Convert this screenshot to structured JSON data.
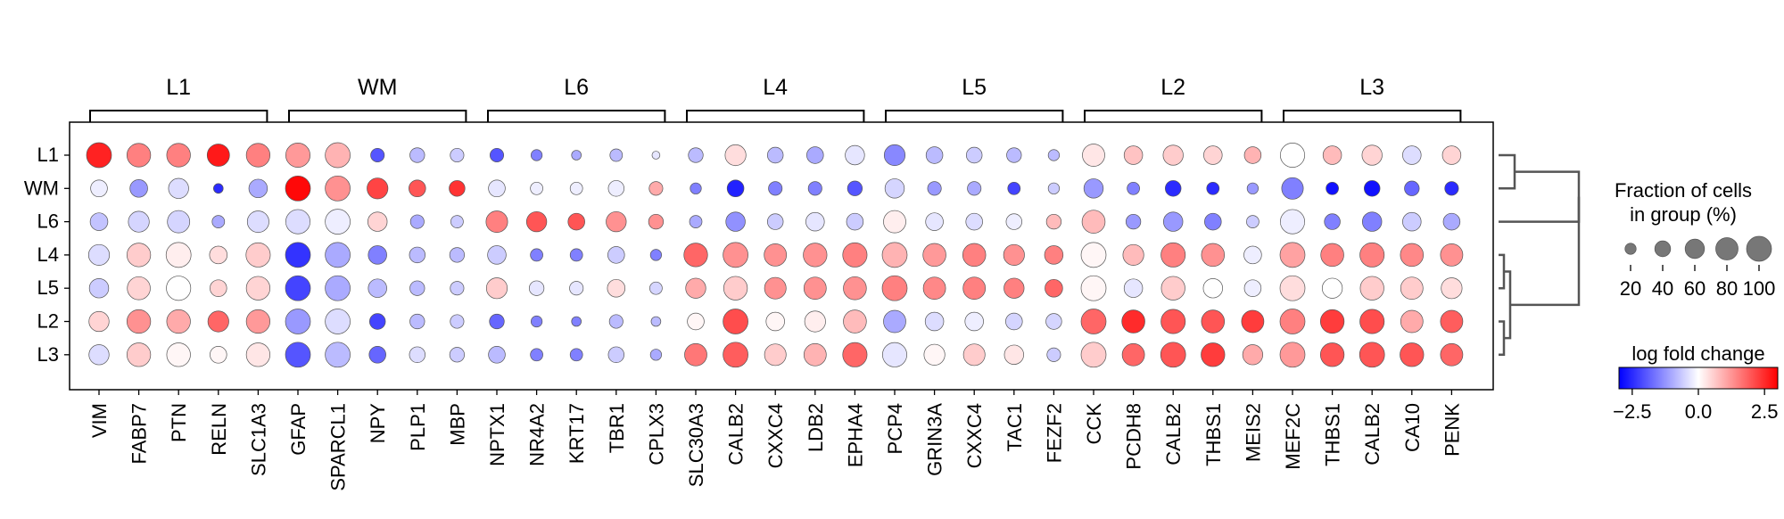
{
  "chart_data": {
    "type": "dotplot",
    "rows": [
      "L1",
      "WM",
      "L6",
      "L4",
      "L5",
      "L2",
      "L3"
    ],
    "group_labels": [
      "L1",
      "WM",
      "L6",
      "L4",
      "L5",
      "L2",
      "L3"
    ],
    "genes": [
      "VIM",
      "FABP7",
      "PTN",
      "RELN",
      "SLC1A3",
      "GFAP",
      "SPARCL1",
      "NPY",
      "PLP1",
      "MBP",
      "NPTX1",
      "NR4A2",
      "KRT17",
      "TBR1",
      "CPLX3",
      "SLC30A3",
      "CALB2",
      "CXXC4",
      "LDB2",
      "EPHA4",
      "PCP4",
      "GRIN3A",
      "CXXC4",
      "TAC1",
      "FEZF2",
      "CCK",
      "PCDH8",
      "CALB2",
      "THBS1",
      "MEIS2",
      "MEF2C",
      "THBS1",
      "CALB2",
      "CA10",
      "PENK"
    ],
    "fraction_pct": [
      [
        100,
        90,
        90,
        80,
        90,
        95,
        100,
        30,
        35,
        30,
        30,
        20,
        15,
        25,
        10,
        35,
        70,
        40,
        45,
        60,
        70,
        45,
        40,
        35,
        20,
        80,
        55,
        65,
        55,
        45,
        95,
        55,
        65,
        55,
        55
      ],
      [
        45,
        50,
        65,
        15,
        55,
        100,
        100,
        70,
        45,
        40,
        45,
        25,
        25,
        40,
        30,
        20,
        45,
        30,
        30,
        35,
        60,
        30,
        30,
        25,
        20,
        60,
        25,
        40,
        25,
        20,
        75,
        25,
        40,
        35,
        30
      ],
      [
        50,
        70,
        80,
        25,
        75,
        95,
        100,
        60,
        30,
        25,
        75,
        65,
        45,
        65,
        35,
        25,
        60,
        40,
        55,
        45,
        80,
        50,
        45,
        40,
        35,
        85,
        35,
        60,
        45,
        25,
        95,
        40,
        60,
        55,
        45
      ],
      [
        70,
        90,
        100,
        50,
        95,
        100,
        100,
        55,
        40,
        35,
        55,
        25,
        25,
        45,
        20,
        90,
        100,
        80,
        90,
        95,
        100,
        85,
        85,
        70,
        55,
        100,
        70,
        95,
        85,
        50,
        100,
        85,
        95,
        85,
        80
      ],
      [
        60,
        85,
        95,
        45,
        90,
        100,
        100,
        55,
        35,
        30,
        70,
        35,
        30,
        50,
        25,
        65,
        90,
        75,
        80,
        85,
        100,
        80,
        80,
        65,
        50,
        100,
        55,
        90,
        60,
        45,
        100,
        65,
        90,
        80,
        70
      ],
      [
        65,
        90,
        90,
        70,
        90,
        100,
        100,
        40,
        35,
        30,
        35,
        20,
        15,
        30,
        15,
        45,
        100,
        55,
        70,
        85,
        80,
        55,
        55,
        45,
        40,
        100,
        85,
        95,
        85,
        80,
        100,
        90,
        95,
        80,
        80
      ],
      [
        65,
        90,
        90,
        45,
        90,
        100,
        100,
        45,
        40,
        35,
        45,
        25,
        25,
        40,
        20,
        80,
        100,
        75,
        80,
        95,
        95,
        70,
        75,
        60,
        30,
        100,
        80,
        100,
        90,
        65,
        100,
        90,
        100,
        90,
        80
      ]
    ],
    "log_fold_change": [
      [
        2.6,
        1.5,
        1.5,
        2.7,
        1.5,
        1.2,
        0.9,
        -2.0,
        -0.8,
        -0.6,
        -2.0,
        -1.5,
        -1.0,
        -0.8,
        -0.3,
        -0.8,
        0.4,
        -0.8,
        -1.0,
        -0.3,
        -1.4,
        -0.8,
        -0.6,
        -0.8,
        -0.8,
        0.3,
        0.7,
        0.6,
        0.5,
        0.9,
        0.0,
        0.8,
        0.5,
        -0.4,
        0.5
      ],
      [
        -0.2,
        -1.2,
        -0.4,
        -2.5,
        -1.0,
        2.9,
        1.3,
        2.2,
        2.0,
        2.4,
        -0.3,
        -0.2,
        -0.2,
        -0.2,
        1.0,
        -1.5,
        -2.6,
        -1.5,
        -1.5,
        -2.0,
        -0.5,
        -1.2,
        -1.0,
        -2.2,
        -0.6,
        -1.2,
        -1.5,
        -2.5,
        -2.5,
        -1.2,
        -1.5,
        -2.8,
        -2.8,
        -1.8,
        -2.5
      ],
      [
        -0.7,
        -0.5,
        -0.5,
        -1.0,
        -0.4,
        -0.4,
        -0.2,
        0.5,
        -1.0,
        -0.6,
        1.5,
        2.0,
        2.0,
        1.3,
        1.3,
        -1.0,
        -1.3,
        -0.6,
        -0.3,
        -0.6,
        0.2,
        -0.3,
        -0.4,
        -0.2,
        0.8,
        0.8,
        -1.2,
        -1.2,
        -1.5,
        -0.6,
        -0.2,
        -1.5,
        -1.5,
        -0.6,
        -1.0
      ],
      [
        -0.4,
        0.6,
        0.2,
        0.4,
        0.6,
        -2.4,
        -1.0,
        -1.5,
        -0.8,
        -0.8,
        -0.6,
        -1.5,
        -1.5,
        -0.6,
        -1.5,
        1.8,
        1.3,
        1.3,
        1.3,
        1.5,
        0.9,
        1.2,
        1.5,
        1.3,
        1.5,
        0.1,
        0.8,
        1.5,
        1.3,
        -0.2,
        1.1,
        1.5,
        1.5,
        1.4,
        1.3
      ],
      [
        -0.6,
        0.5,
        0.0,
        0.5,
        0.5,
        -2.2,
        -1.0,
        -0.8,
        -0.8,
        -0.6,
        0.6,
        -0.3,
        -0.3,
        0.4,
        -0.5,
        1.0,
        0.6,
        1.3,
        1.3,
        1.3,
        1.5,
        1.4,
        1.5,
        1.5,
        1.8,
        0.1,
        -0.3,
        0.6,
        0.0,
        -0.2,
        0.4,
        0.0,
        0.6,
        0.6,
        0.4
      ],
      [
        0.5,
        1.3,
        1.0,
        1.8,
        1.2,
        -1.2,
        -0.4,
        -2.2,
        -0.8,
        -0.6,
        -1.8,
        -1.5,
        -1.5,
        -0.8,
        -0.8,
        0.1,
        2.1,
        0.1,
        0.2,
        0.8,
        -1.0,
        -0.4,
        -0.2,
        -0.5,
        -0.5,
        1.8,
        2.5,
        2.0,
        2.0,
        2.3,
        1.5,
        2.3,
        2.1,
        1.0,
        1.9
      ],
      [
        -0.4,
        0.6,
        0.1,
        0.1,
        0.3,
        -2.0,
        -0.8,
        -1.8,
        -0.4,
        -0.6,
        -0.8,
        -1.5,
        -1.5,
        -0.6,
        -1.0,
        1.6,
        1.9,
        0.6,
        0.9,
        1.8,
        -0.3,
        0.1,
        0.6,
        0.3,
        -0.6,
        0.6,
        1.8,
        2.0,
        2.3,
        1.0,
        1.2,
        2.0,
        2.0,
        2.0,
        1.8
      ]
    ],
    "colorbar": {
      "title": "log fold change",
      "range": [
        -3,
        3
      ],
      "ticks": [
        "−2.5",
        "0.0",
        "2.5"
      ]
    },
    "size_legend": {
      "title_line1": "Fraction of cells",
      "title_line2": "in group (%)",
      "ticks": [
        "20",
        "40",
        "60",
        "80",
        "100"
      ]
    },
    "colors": {
      "low": "#0000ff",
      "mid": "#ffffff",
      "high": "#ff0000",
      "dendrogram": "#555555"
    }
  }
}
